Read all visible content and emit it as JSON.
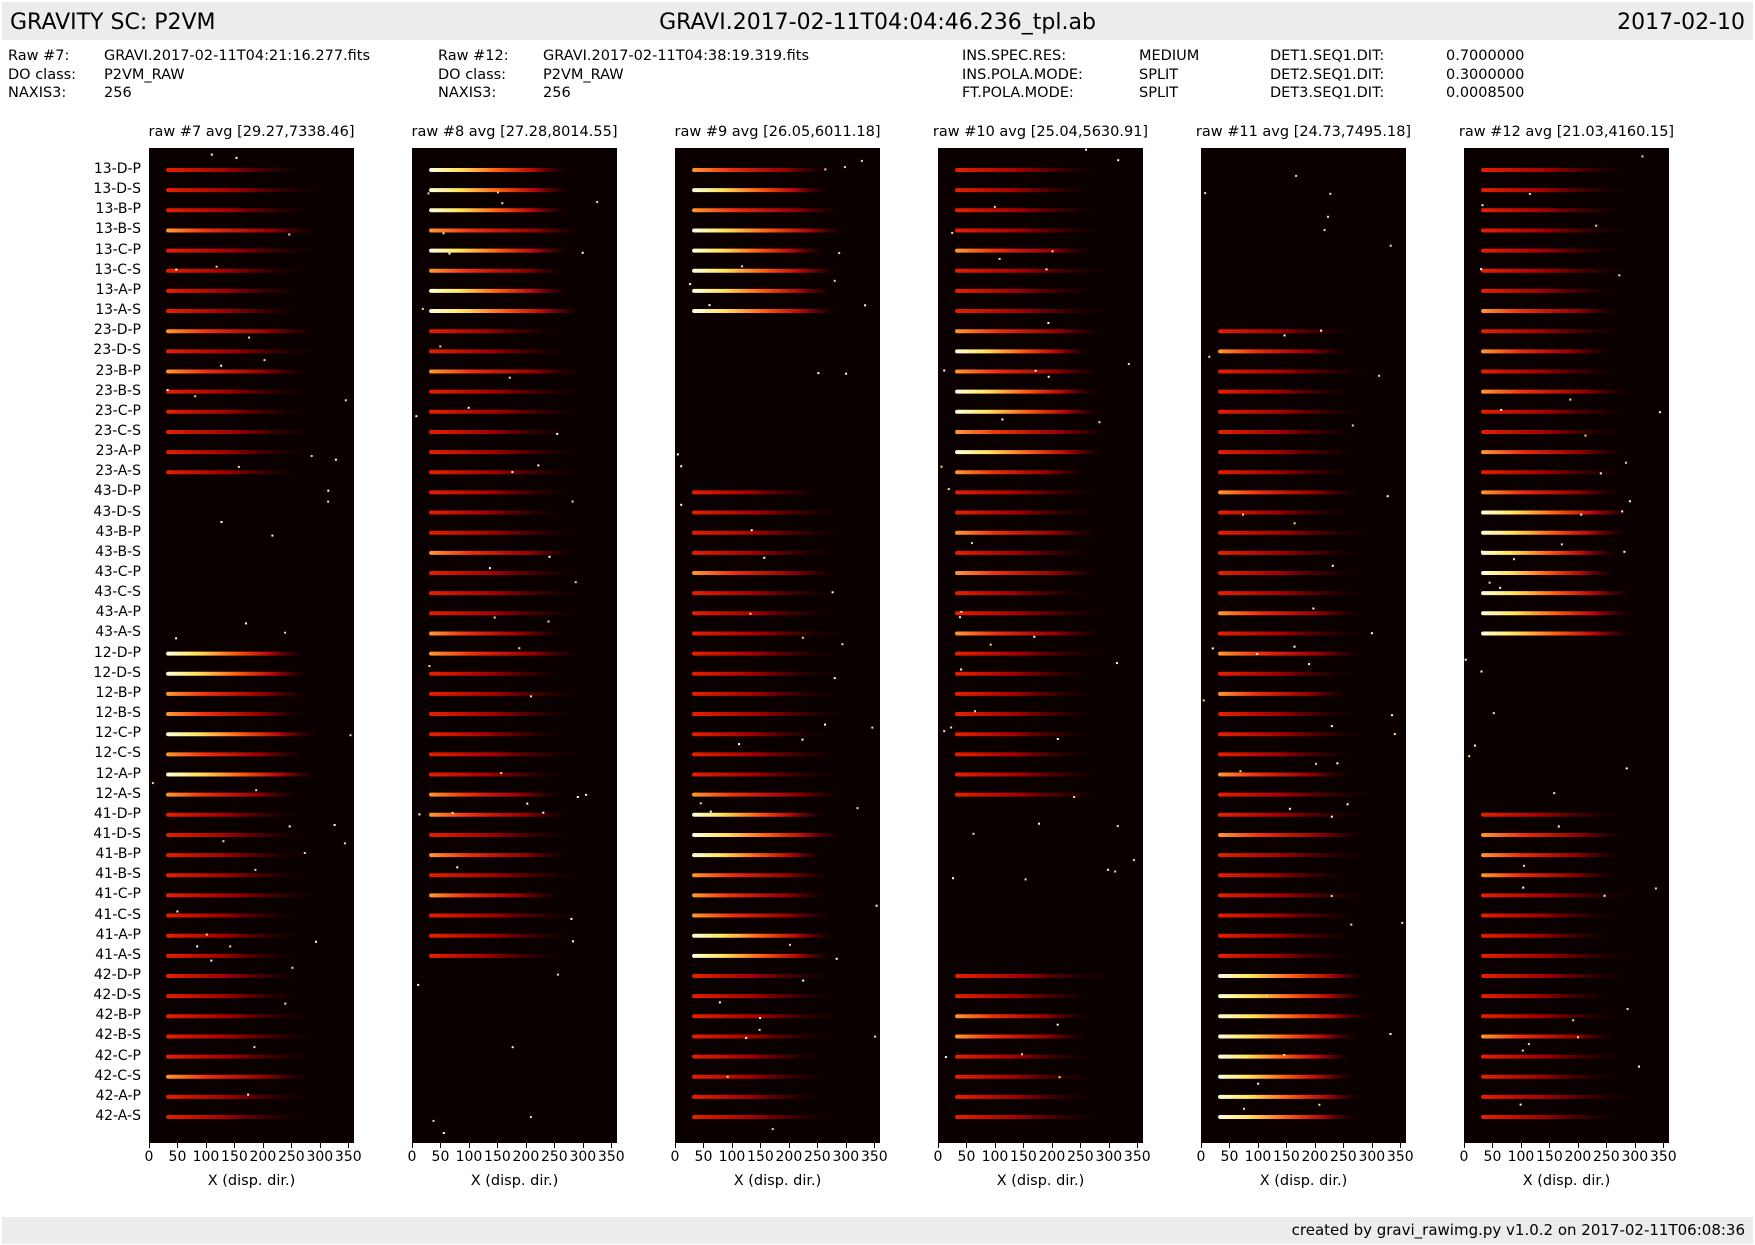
{
  "header": {
    "left_title": "GRAVITY SC: P2VM",
    "center_title": "GRAVI.2017-02-11T04:04:46.236_tpl.ab",
    "right_title": "2017-02-10"
  },
  "meta": {
    "col1": {
      "labels": [
        "Raw #7:",
        "DO class:",
        "NAXIS3:"
      ],
      "values": [
        "GRAVI.2017-02-11T04:21:16.277.fits",
        "P2VM_RAW",
        "256"
      ]
    },
    "col2": {
      "labels": [
        "Raw #12:",
        "DO class:",
        "NAXIS3:"
      ],
      "values": [
        "GRAVI.2017-02-11T04:38:19.319.fits",
        "P2VM_RAW",
        "256"
      ]
    },
    "col3": {
      "labels": [
        "INS.SPEC.RES:",
        "INS.POLA.MODE:",
        "FT.POLA.MODE:"
      ],
      "values": [
        "MEDIUM",
        "SPLIT",
        "SPLIT"
      ]
    },
    "col4": {
      "labels": [
        "DET1.SEQ1.DIT:",
        "DET2.SEQ1.DIT:",
        "DET3.SEQ1.DIT:"
      ],
      "values": [
        "0.7000000",
        "0.3000000",
        "0.0008500"
      ]
    }
  },
  "footer": {
    "text": "created by gravi_rawimg.py v1.0.2 on 2017-02-11T06:08:36"
  },
  "chart_data": {
    "type": "heatmap",
    "xlabel": "X (disp. dir.)",
    "xticks": [
      0,
      50,
      100,
      150,
      200,
      250,
      300,
      350
    ],
    "xlim": [
      0,
      360
    ],
    "row_labels": [
      "13-D-P",
      "13-D-S",
      "13-B-P",
      "13-B-S",
      "13-C-P",
      "13-C-S",
      "13-A-P",
      "13-A-S",
      "23-D-P",
      "23-D-S",
      "23-B-P",
      "23-B-S",
      "23-C-P",
      "23-C-S",
      "23-A-P",
      "23-A-S",
      "43-D-P",
      "43-D-S",
      "43-B-P",
      "43-B-S",
      "43-C-P",
      "43-C-S",
      "43-A-P",
      "43-A-S",
      "12-D-P",
      "12-D-S",
      "12-B-P",
      "12-B-S",
      "12-C-P",
      "12-C-S",
      "12-A-P",
      "12-A-S",
      "41-D-P",
      "41-D-S",
      "41-B-P",
      "41-B-S",
      "41-C-P",
      "41-C-S",
      "41-A-P",
      "41-A-S",
      "42-D-P",
      "42-D-S",
      "42-B-P",
      "42-B-S",
      "42-C-P",
      "42-C-S",
      "42-A-P",
      "42-A-S"
    ],
    "panels": [
      {
        "title": "raw #7 avg [29.27,7338.46]",
        "lit_groups": [
          1,
          1,
          0,
          2,
          1,
          1
        ]
      },
      {
        "title": "raw #8 avg [27.28,8014.55]",
        "lit_groups": [
          2,
          1,
          1,
          1,
          1,
          0
        ]
      },
      {
        "title": "raw #9 avg [26.05,6011.18]",
        "lit_groups": [
          2,
          0,
          1,
          1,
          2,
          1
        ]
      },
      {
        "title": "raw #10 avg [25.04,5630.91]",
        "lit_groups": [
          1,
          2,
          1,
          1,
          0,
          1
        ]
      },
      {
        "title": "raw #11 avg [24.73,7495.18]",
        "lit_groups": [
          0,
          1,
          1,
          1,
          1,
          2
        ]
      },
      {
        "title": "raw #12 avg [21.03,4160.15]",
        "lit_groups": [
          1,
          1,
          2,
          0,
          1,
          1
        ]
      }
    ]
  }
}
